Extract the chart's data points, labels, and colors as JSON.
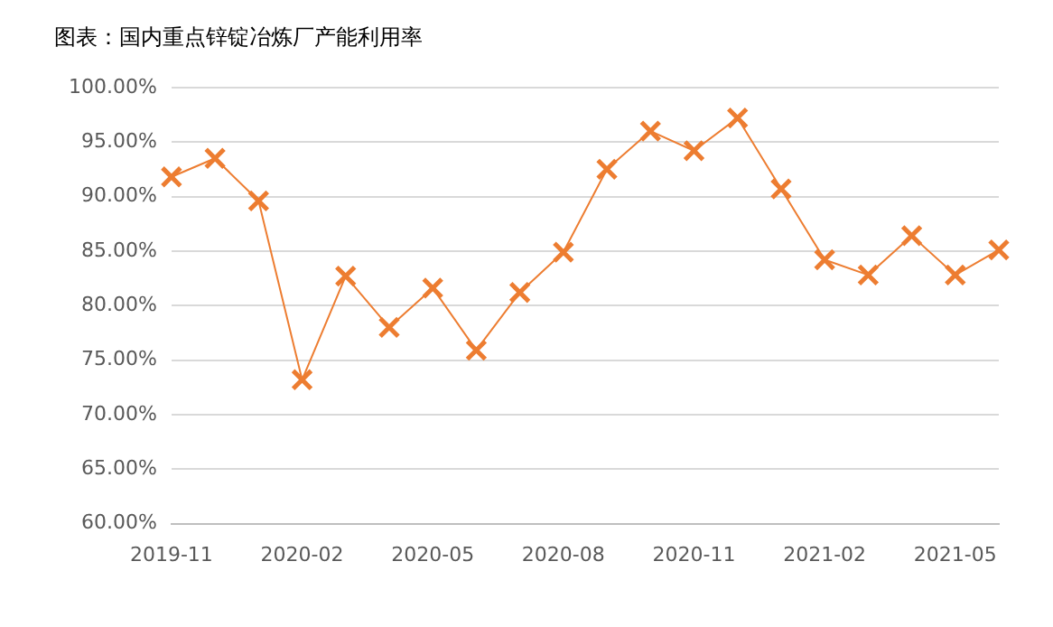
{
  "chart_data": {
    "type": "line",
    "title": "图表：国内重点锌锭冶炼厂产能利用率",
    "categories": [
      "2019-11",
      null,
      null,
      "2020-02",
      null,
      null,
      "2020-05",
      null,
      null,
      "2020-08",
      null,
      null,
      "2020-11",
      null,
      null,
      "2021-02",
      null,
      null,
      "2021-05",
      null
    ],
    "series": [
      {
        "color": "#ed7d31",
        "values": [
          91.8,
          93.5,
          89.6,
          73.2,
          82.7,
          78.0,
          81.6,
          75.9,
          81.2,
          84.9,
          92.5,
          96.0,
          94.2,
          97.2,
          90.7,
          84.2,
          82.8,
          86.4,
          82.8,
          85.1
        ]
      }
    ],
    "ylim": [
      60,
      100
    ],
    "yticks": [
      {
        "value": 60,
        "label": "60.00%"
      },
      {
        "value": 65,
        "label": "65.00%"
      },
      {
        "value": 70,
        "label": "70.00%"
      },
      {
        "value": 75,
        "label": "75.00%"
      },
      {
        "value": 80,
        "label": "80.00%"
      },
      {
        "value": 85,
        "label": "85.00%"
      },
      {
        "value": 90,
        "label": "90.00%"
      },
      {
        "value": 95,
        "label": "95.00%"
      },
      {
        "value": 100,
        "label": "100.00%"
      }
    ],
    "grid": "y",
    "marker": "cross",
    "legend": false
  }
}
